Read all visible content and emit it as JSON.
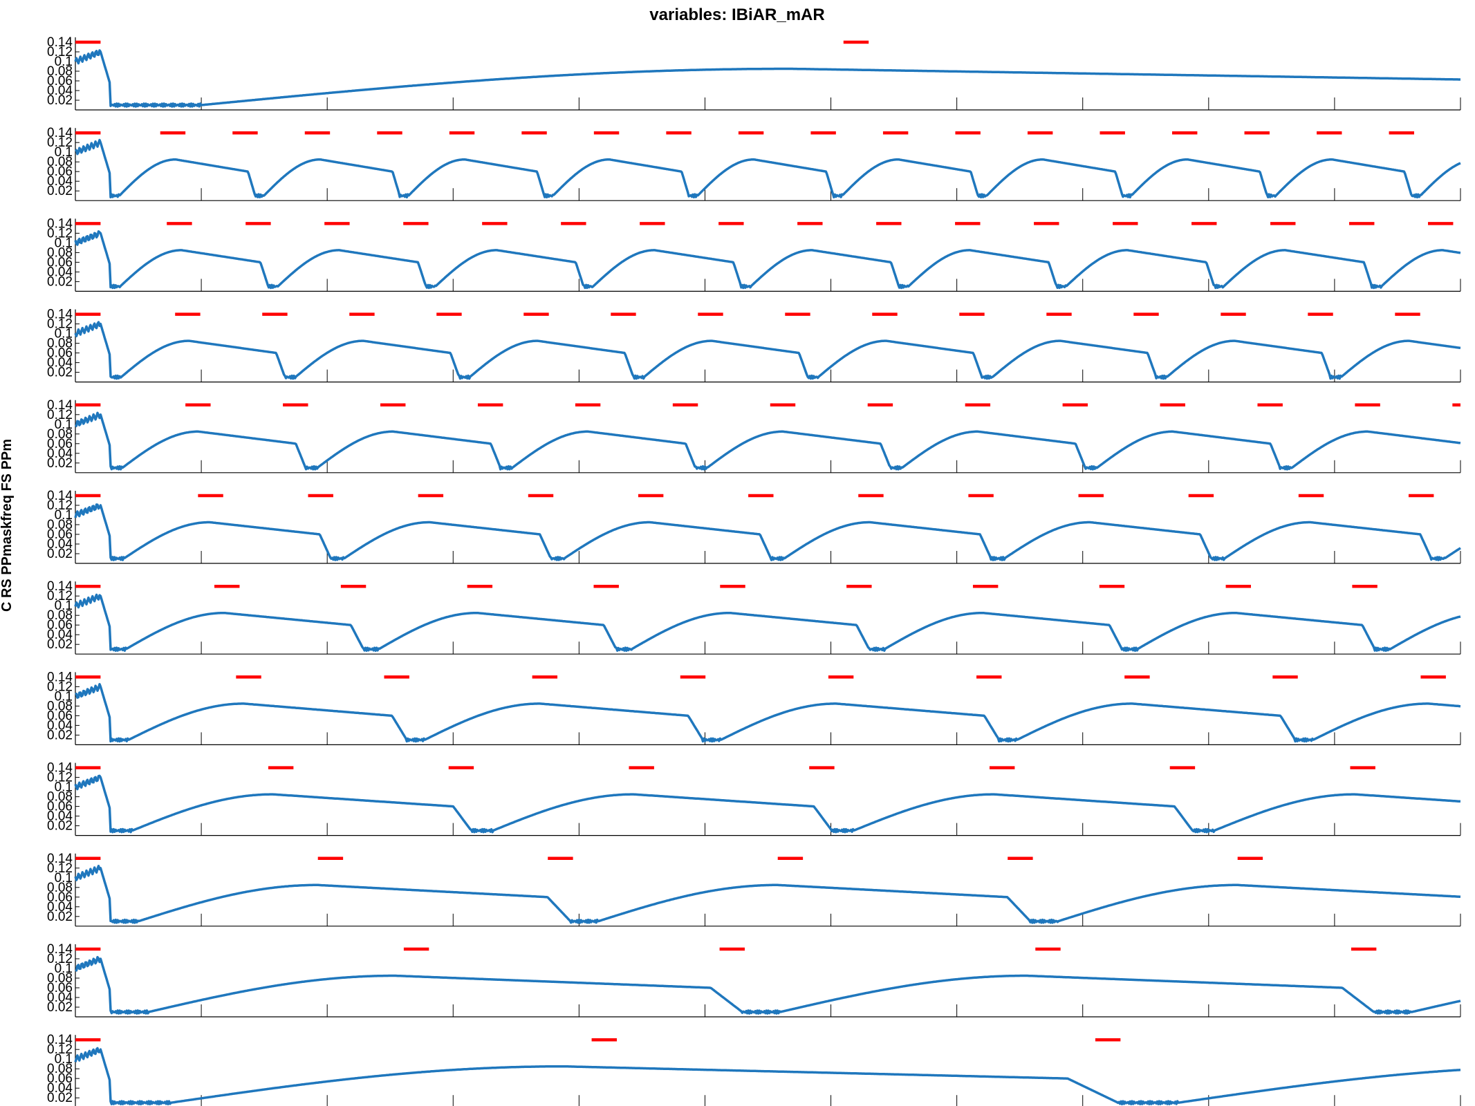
{
  "chart_data": {
    "type": "line",
    "title": "variables: IBiAR_mAR",
    "ylabel": "C RS PPmaskfreq FS PPm",
    "xlim": [
      0,
      5500
    ],
    "x_ticks": [
      0,
      500,
      1000,
      1500,
      2000,
      2500,
      3000,
      3500,
      4000,
      4500,
      5000,
      5500
    ],
    "ylim": [
      0,
      0.15
    ],
    "y_ticks": [
      "0.02",
      "0.04",
      "0.06",
      "0.08",
      "0.1",
      "0.12",
      "0.14"
    ],
    "grid": false,
    "colors": {
      "line": "#1f77bd",
      "marker": "#ff0000",
      "axis": "#000000"
    },
    "panels": [
      {
        "period": 3000,
        "pulse_len": 100,
        "pulse_y": 0.14
      },
      {
        "period": 287,
        "pulse_len": 100,
        "pulse_y": 0.14
      },
      {
        "period": 313,
        "pulse_len": 100,
        "pulse_y": 0.14
      },
      {
        "period": 346,
        "pulse_len": 100,
        "pulse_y": 0.14
      },
      {
        "period": 387,
        "pulse_len": 100,
        "pulse_y": 0.14
      },
      {
        "period": 437,
        "pulse_len": 100,
        "pulse_y": 0.14
      },
      {
        "period": 502,
        "pulse_len": 100,
        "pulse_y": 0.14
      },
      {
        "period": 588,
        "pulse_len": 100,
        "pulse_y": 0.14
      },
      {
        "period": 716,
        "pulse_len": 100,
        "pulse_y": 0.14
      },
      {
        "period": 913,
        "pulse_len": 100,
        "pulse_y": 0.14
      },
      {
        "period": 1254,
        "pulse_len": 100,
        "pulse_y": 0.14
      },
      {
        "period": 2000,
        "pulse_len": 100,
        "pulse_y": 0.14
      }
    ]
  }
}
